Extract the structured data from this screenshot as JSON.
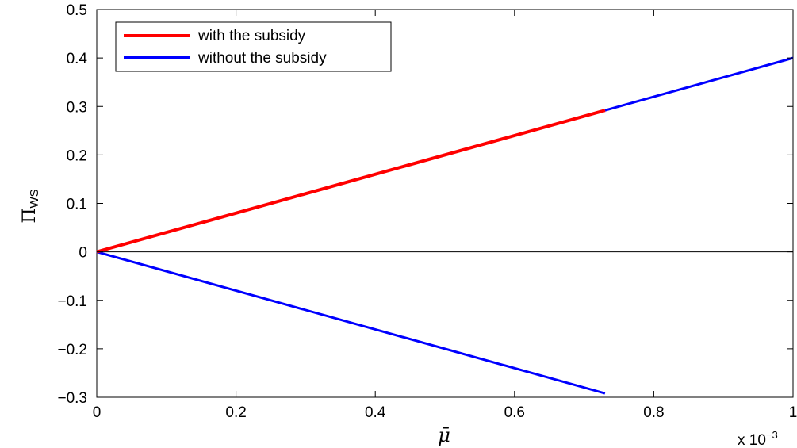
{
  "chart_data": {
    "type": "line",
    "title": "",
    "xlabel": "μ̄",
    "ylabel": "Π",
    "ylabel_subscript": "WS",
    "xlim": [
      0,
      1
    ],
    "ylim": [
      -0.3,
      0.5
    ],
    "x_ticks": [
      0,
      0.2,
      0.4,
      0.6,
      0.8,
      1
    ],
    "x_tick_labels": [
      "0",
      "0.2",
      "0.4",
      "0.6",
      "0.8",
      "1"
    ],
    "y_ticks": [
      -0.3,
      -0.2,
      -0.1,
      0,
      0.1,
      0.2,
      0.3,
      0.4,
      0.5
    ],
    "y_tick_labels": [
      "−0.3",
      "−0.2",
      "−0.1",
      "0",
      "0.1",
      "0.2",
      "0.3",
      "0.4",
      "0.5"
    ],
    "x_exponent_label": "x 10",
    "x_exponent_power": "−3",
    "grid": false,
    "legend_position": "top-left",
    "zero_line": true,
    "series": [
      {
        "name": "with the subsidy",
        "color": "#ff0000",
        "x": [
          0,
          0.73
        ],
        "y": [
          0,
          0.292
        ]
      },
      {
        "name": "without the subsidy",
        "color": "#0000ff",
        "segments": [
          {
            "x": [
              0,
              0.73
            ],
            "y": [
              0,
              -0.292
            ]
          },
          {
            "x": [
              0.73,
              1
            ],
            "y": [
              0.292,
              0.4
            ]
          }
        ]
      }
    ]
  }
}
